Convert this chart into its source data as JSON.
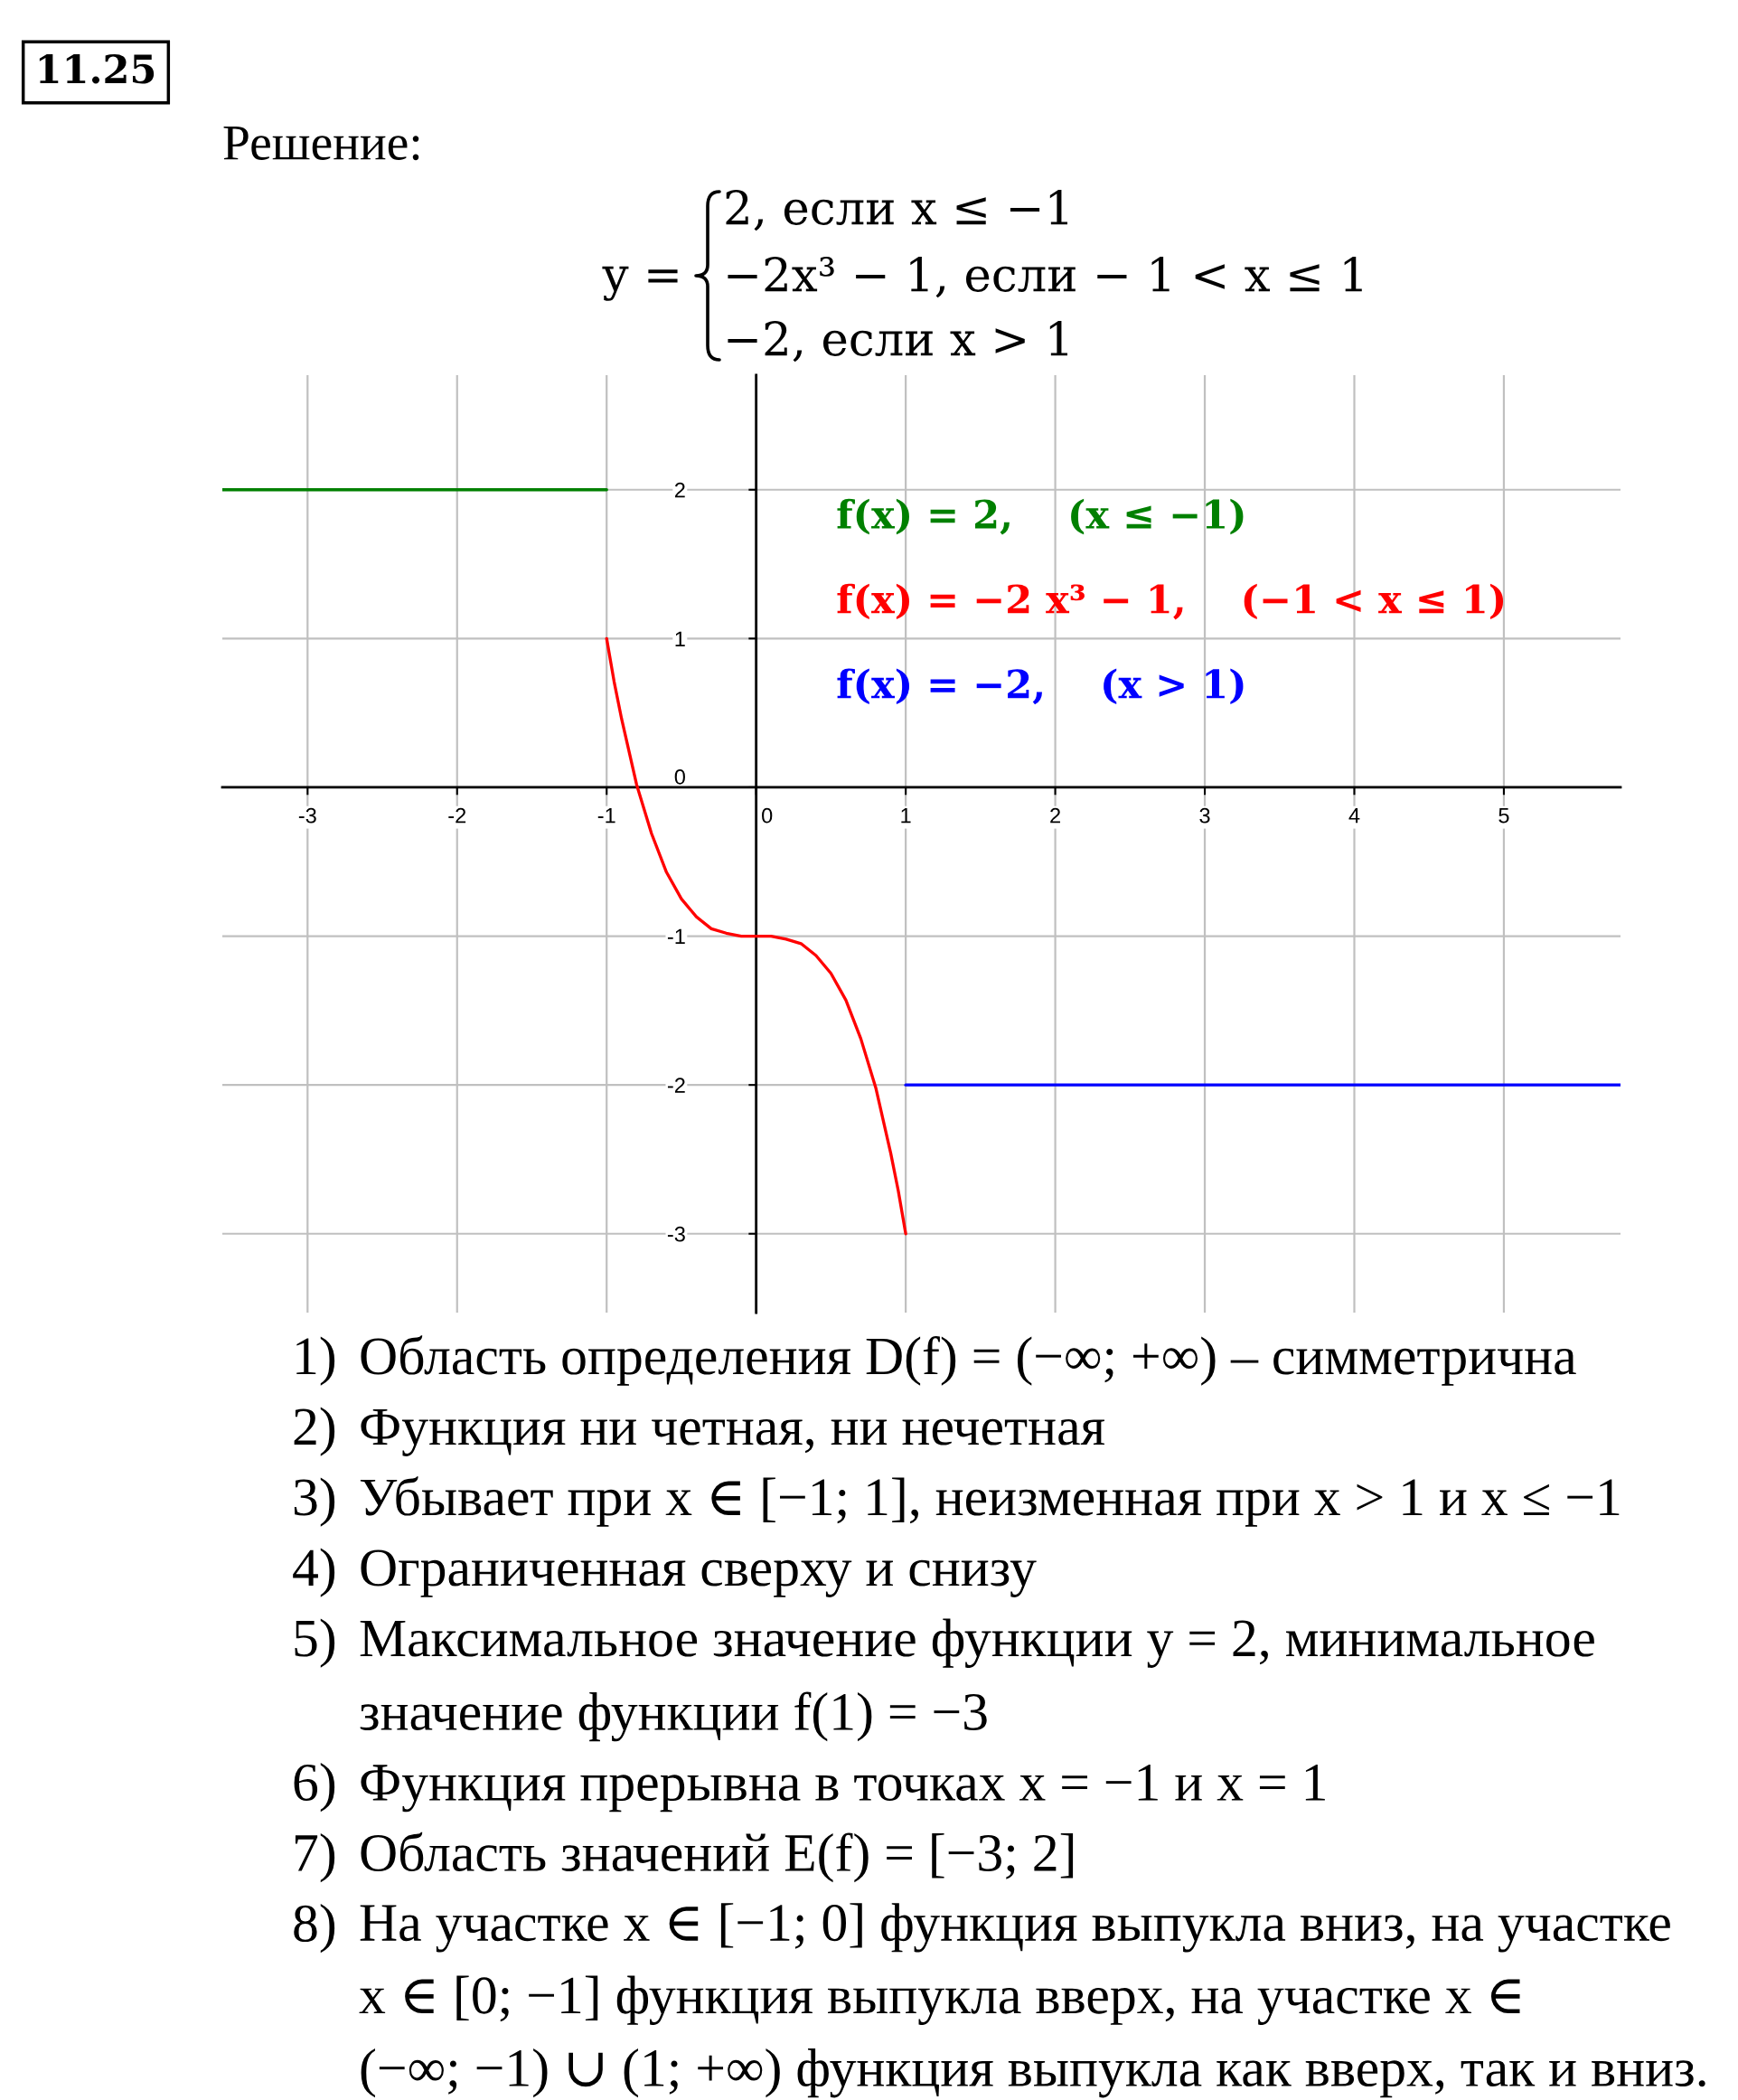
{
  "chart_data": {
    "type": "line",
    "title": "11.25",
    "subtitle": "Решение:",
    "series": [
      {
        "name": "f(x) = 2,    (x ≤ −1)",
        "color": "#008000",
        "x": [
          -3.57,
          -1
        ],
        "values": [
          2,
          2
        ]
      },
      {
        "name": "f(x) = −2 x³ − 1,    (−1 < x ≤ 1)",
        "color": "#ff0000",
        "x": [
          -1,
          -0.95,
          -0.9,
          -0.8,
          -0.7,
          -0.6,
          -0.5,
          -0.4,
          -0.3,
          -0.2,
          -0.1,
          0,
          0.1,
          0.2,
          0.3,
          0.4,
          0.5,
          0.6,
          0.7,
          0.8,
          0.9,
          0.95,
          1
        ],
        "values": [
          1,
          0.71,
          0.46,
          0.02,
          -0.31,
          -0.57,
          -0.75,
          -0.87,
          -0.95,
          -0.98,
          -1.0,
          -1,
          -1.0,
          -1.02,
          -1.05,
          -1.13,
          -1.25,
          -1.43,
          -1.69,
          -2.02,
          -2.46,
          -2.71,
          -3
        ]
      },
      {
        "name": "f(x) = −2,    (x > 1)",
        "color": "#0000ff",
        "x": [
          1,
          5.78
        ],
        "values": [
          -2,
          -2
        ]
      }
    ],
    "xlim": [
      -3.57,
      5.78
    ],
    "ylim": [
      -3.53,
      2.77
    ],
    "xticks": [
      -3,
      -2,
      -1,
      0,
      1,
      2,
      3,
      4,
      5
    ],
    "yticks": [
      -3,
      -2,
      -1,
      0,
      1,
      2
    ],
    "grid": true,
    "annotations": [
      "y =",
      "2, если x ≤ −1",
      "−2x³ − 1, если − 1 < x ≤ 1",
      "−2, если x > 1",
      "1)",
      "Область определения D(f) = (−∞; +∞) – симметрична",
      "2)",
      "Функция ни четная, ни нечетная",
      "3)",
      "Убывает при x ∈ [−1; 1], неизменная при x > 1 и x ≤ −1",
      "4)",
      "Ограниченная сверху и снизу",
      "5)",
      "Максимальное значение функции y = 2, минимальное\nзначение функции f(1) = −3",
      "6)",
      "Функция прерывна в точках x = −1 и x = 1",
      "7)",
      "Область значений E(f) = [−3; 2]",
      "8)",
      "На участке x ∈ [−1; 0] функция выпукла вниз, на участке\nx ∈ [0; −1] функция выпукла вверх, на участке x ∈\n(−∞; −1) ∪ (1; +∞) функция выпукла как вверх, так и вниз."
    ]
  }
}
